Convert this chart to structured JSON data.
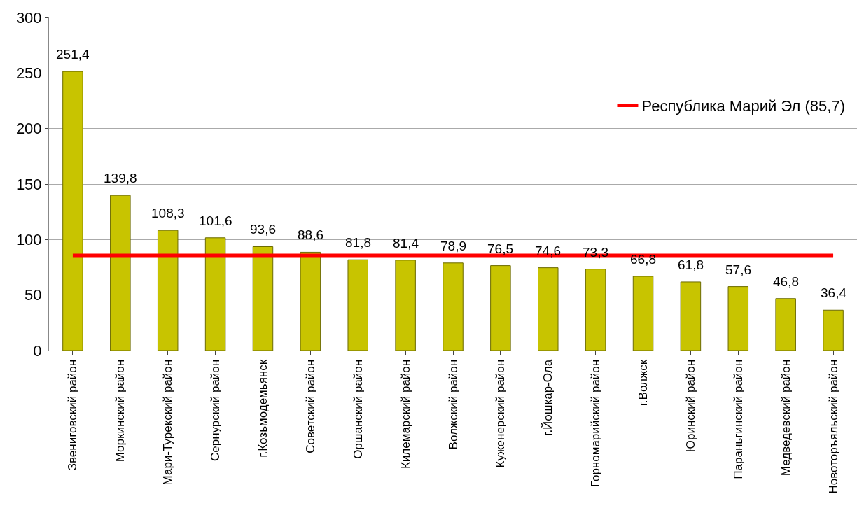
{
  "chart_data": {
    "type": "bar",
    "categories": [
      "Звениговский район",
      "Моркинский район",
      "Мари-Турекский район",
      "Сернурский район",
      "г.Козьмодемьянск",
      "Советский район",
      "Оршанский район",
      "Килемарский район",
      "Волжский район",
      "Куженерский район",
      "г.Йошкар-Ола",
      "Горномарийский район",
      "г.Волжск",
      "Юринский район",
      "Параньгинский район",
      "Медведевский район",
      "Новоторъяльский район"
    ],
    "series": [
      {
        "color": "#c8c400",
        "values": [
          251.4,
          139.8,
          108.3,
          101.6,
          93.6,
          88.6,
          81.8,
          81.4,
          78.9,
          76.5,
          74.6,
          73.3,
          66.8,
          61.8,
          57.6,
          46.8,
          36.4
        ],
        "value_labels": [
          "251,4",
          "139,8",
          "108,3",
          "101,6",
          "93,6",
          "88,6",
          "81,8",
          "81,4",
          "78,9",
          "76,5",
          "74,6",
          "73,3",
          "66,8",
          "61,8",
          "57,6",
          "46,8",
          "36,4"
        ]
      },
      {
        "type": "line",
        "name": "Республика Марий Эл (85,7)",
        "color": "#ff0000",
        "values": [
          85.7,
          85.7,
          85.7,
          85.7,
          85.7,
          85.7,
          85.7,
          85.7,
          85.7,
          85.7,
          85.7,
          85.7,
          85.7,
          85.7,
          85.7,
          85.7,
          85.7
        ]
      }
    ],
    "ylim": [
      0,
      300
    ],
    "yticks": [
      0,
      50,
      100,
      150,
      200,
      250,
      300
    ],
    "grid": "y",
    "legend": "top right",
    "marker": "none",
    "line_style": "solid"
  }
}
